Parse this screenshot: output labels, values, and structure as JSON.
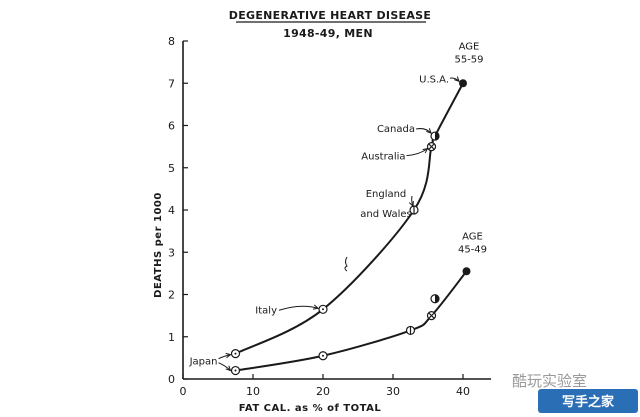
{
  "chart_data": {
    "type": "line",
    "title": "DEGENERATIVE HEART DISEASE",
    "subtitle": "1948-49, MEN",
    "xlabel": "FAT CAL. as % of TOTAL",
    "ylabel": "DEATHS per 1000",
    "xlim": [
      0,
      45
    ],
    "ylim": [
      0,
      8
    ],
    "xticks": [
      "0",
      "10",
      "20",
      "30",
      "40"
    ],
    "yticks": [
      "0",
      "1",
      "2",
      "3",
      "4",
      "5",
      "6",
      "7",
      "8"
    ],
    "grid": false,
    "series": [
      {
        "name": "AGE 55-59",
        "name_lines": [
          "AGE",
          "55-59"
        ],
        "points": [
          {
            "label": "Japan",
            "x": 7.5,
            "y": 0.6,
            "marker": "open-dot"
          },
          {
            "label": "Italy",
            "x": 20,
            "y": 1.65,
            "marker": "open-dot"
          },
          {
            "label": "England and Wales",
            "label_lines": [
              "England",
              "and Wales"
            ],
            "x": 33,
            "y": 4.0,
            "marker": "circle-bar"
          },
          {
            "label": "Australia",
            "x": 35.5,
            "y": 5.5,
            "marker": "circle-x"
          },
          {
            "label": "Canada",
            "x": 36,
            "y": 5.75,
            "marker": "half"
          },
          {
            "label": "U.S.A.",
            "x": 40,
            "y": 7.0,
            "marker": "filled"
          }
        ]
      },
      {
        "name": "AGE 45-49",
        "name_lines": [
          "AGE",
          "45-49"
        ],
        "points": [
          {
            "x": 7.5,
            "y": 0.2,
            "marker": "open-dot"
          },
          {
            "x": 20,
            "y": 0.55,
            "marker": "open-dot"
          },
          {
            "x": 32.5,
            "y": 1.15,
            "marker": "circle-bar"
          },
          {
            "x": 35.5,
            "y": 1.5,
            "marker": "circle-x"
          },
          {
            "x": 36,
            "y": 1.9,
            "marker": "half"
          },
          {
            "x": 40.5,
            "y": 2.55,
            "marker": "filled"
          }
        ]
      }
    ]
  },
  "watermark": {
    "text": "酷玩实验室",
    "badge_text": "写手之家"
  },
  "colors": {
    "ink": "#1a1a1a",
    "background": "#ffffff",
    "watermark": "#9a9a9a",
    "badge": "#2a6fb5"
  }
}
